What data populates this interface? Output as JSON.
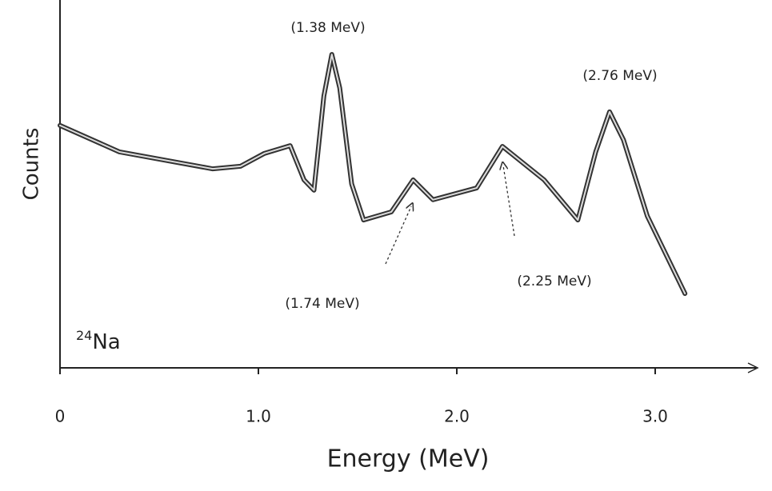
{
  "chart_data": {
    "type": "line",
    "x_label": "Energy (MeV)",
    "y_label": "Counts",
    "isotope": {
      "mass": "24",
      "element": "Na"
    },
    "xlim": [
      0,
      3.5
    ],
    "ylim": [
      0,
      100
    ],
    "xticks": [
      0,
      {
        "value": 1,
        "label": "1.0"
      },
      {
        "value": 2,
        "label": "2.0"
      },
      {
        "value": 3,
        "label": "3.0"
      }
    ],
    "color": "#333333",
    "x": [
      0,
      0.3,
      0.77,
      0.91,
      1.03,
      1.16,
      1.23,
      1.28,
      1.33,
      1.37,
      1.41,
      1.47,
      1.53,
      1.67,
      1.78,
      1.88,
      2.1,
      2.23,
      2.44,
      2.61,
      2.7,
      2.77,
      2.84,
      2.96,
      3.15
    ],
    "values": [
      65.9,
      58.7,
      54.1,
      54.8,
      58.3,
      60.4,
      51.1,
      48.3,
      73.9,
      85.2,
      76.1,
      50,
      40.2,
      42.4,
      51.1,
      45.7,
      48.9,
      60.2,
      51.1,
      40.2,
      58.7,
      69.6,
      62,
      41.3,
      20.2
    ],
    "annotations": [
      "(1.38 MeV)",
      "(2.76 MeV)",
      "(1.74 MeV)",
      "(2.25 MeV)"
    ]
  }
}
